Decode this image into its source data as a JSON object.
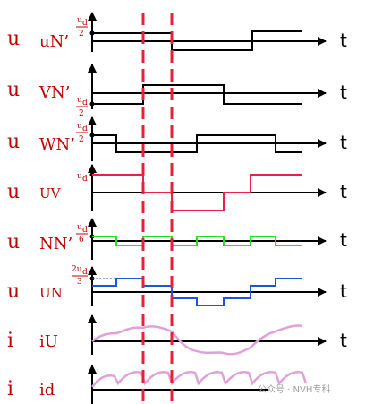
{
  "rows": [
    {
      "sym": "u",
      "name": "uN’",
      "axis": "t",
      "mark_top": "u",
      "mark_sub": "d",
      "mark_bot": "2",
      "mark_sign": ""
    },
    {
      "sym": "u",
      "name": "VN’",
      "axis": "t",
      "mark_top": "u",
      "mark_sub": "d",
      "mark_bot": "2",
      "mark_sign": "-"
    },
    {
      "sym": "u",
      "name": "WN’",
      "axis": "t",
      "mark_top": "u",
      "mark_sub": "d",
      "mark_bot": "2",
      "mark_sign": ""
    },
    {
      "sym": "u",
      "name": "UV",
      "axis": "t",
      "mark_top": "u",
      "mark_sub": "d",
      "mark_bot": "",
      "mark_sign": ""
    },
    {
      "sym": "u",
      "name": "NN’",
      "axis": "t",
      "mark_top": "u",
      "mark_sub": "d",
      "mark_bot": "6",
      "mark_sign": ""
    },
    {
      "sym": "u",
      "name": "UN",
      "axis": "t",
      "mark_top": "2u",
      "mark_sub": "d",
      "mark_bot": "3",
      "mark_sign": ""
    },
    {
      "sym": "i",
      "name": "iU",
      "axis": "t",
      "mark_top": "",
      "mark_sub": "",
      "mark_bot": "",
      "mark_sign": ""
    },
    {
      "sym": "i",
      "name": "id",
      "axis": "t",
      "mark_top": "",
      "mark_sub": "",
      "mark_bot": "",
      "mark_sign": ""
    }
  ],
  "colors": {
    "label": "#c00000",
    "axis": "#000000",
    "dash": "#e8203a",
    "uv": "#e8204a",
    "nn": "#22e022",
    "un": "#1a55e0",
    "current": "#e0a0d8"
  },
  "watermark": "公众号 · NVH专科"
}
